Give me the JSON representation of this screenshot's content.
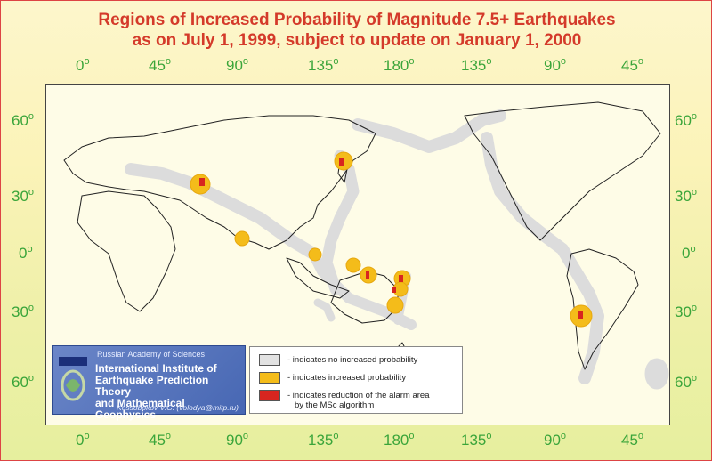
{
  "title": {
    "line1": "Regions of Increased Probability of Magnitude 7.5+ Earthquakes",
    "line2": "as on July 1, 1999, subject to update on January 1, 2000"
  },
  "axes": {
    "lon_labels": [
      "0",
      "45",
      "90",
      "135",
      "180",
      "135",
      "90",
      "45"
    ],
    "lat_labels": [
      "60",
      "30",
      "0",
      "30",
      "60"
    ],
    "degree_mark": "o"
  },
  "institute": {
    "academy": "Russian Academy of Sciences",
    "name_line1": "International Institute of",
    "name_line2": "Earthquake Prediction Theory",
    "name_line3": "and Mathematical Geophysics",
    "author": "Kossobokov V.G. (volodya@mitp.ru)"
  },
  "legend": {
    "items": [
      {
        "color": "#e2e2e2",
        "text": "- indicates no increased probability"
      },
      {
        "color": "#f4bc1a",
        "text": "- indicates increased probability"
      },
      {
        "color": "#d8251f",
        "text": "- indicates reduction of the alarm area",
        "text2": "by the MSc algorithm"
      }
    ]
  },
  "colors": {
    "no_increase": "#e2e2e2",
    "increased": "#f4bc1a",
    "reduction": "#d8251f",
    "title": "#d43a2a",
    "axis_labels": "#3aa53a"
  }
}
